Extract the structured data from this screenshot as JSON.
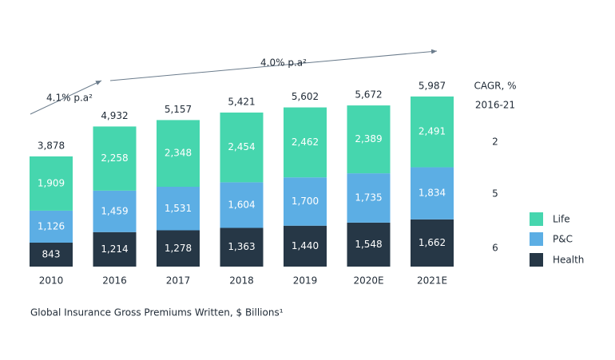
{
  "chart_data": {
    "type": "stacked-bar",
    "categories": [
      "2010",
      "2016",
      "2017",
      "2018",
      "2019",
      "2020E",
      "2021E"
    ],
    "series": [
      {
        "name": "Health",
        "color": "#263746",
        "values": [
          843,
          1214,
          1278,
          1363,
          1440,
          1548,
          1662
        ],
        "value_labels": [
          "843",
          "1,214",
          "1,278",
          "1,363",
          "1,440",
          "1,548",
          "1,662"
        ]
      },
      {
        "name": "P&C",
        "color": "#5caee4",
        "values": [
          1126,
          1459,
          1531,
          1604,
          1700,
          1735,
          1834
        ],
        "value_labels": [
          "1,126",
          "1,459",
          "1,531",
          "1,604",
          "1,700",
          "1,735",
          "1,834"
        ]
      },
      {
        "name": "Life",
        "color": "#46d6ae",
        "values": [
          1909,
          2258,
          2348,
          2454,
          2462,
          2389,
          2491
        ],
        "value_labels": [
          "1,909",
          "2,258",
          "2,348",
          "2,454",
          "2,462",
          "2,389",
          "2,491"
        ]
      }
    ],
    "totals": [
      3878,
      4932,
      5157,
      5421,
      5602,
      5672,
      5987
    ],
    "total_labels": [
      "3,878",
      "4,932",
      "5,157",
      "5,421",
      "5,602",
      "5,672",
      "5,987"
    ],
    "cagr": {
      "title": "CAGR, %",
      "period": "2016-21",
      "values": [
        6,
        5,
        2
      ]
    },
    "annotations": [
      "4.1% p.a²",
      "4.0% p.a²"
    ],
    "caption": "Global Insurance Gross Premiums Written, $ Billions¹"
  }
}
